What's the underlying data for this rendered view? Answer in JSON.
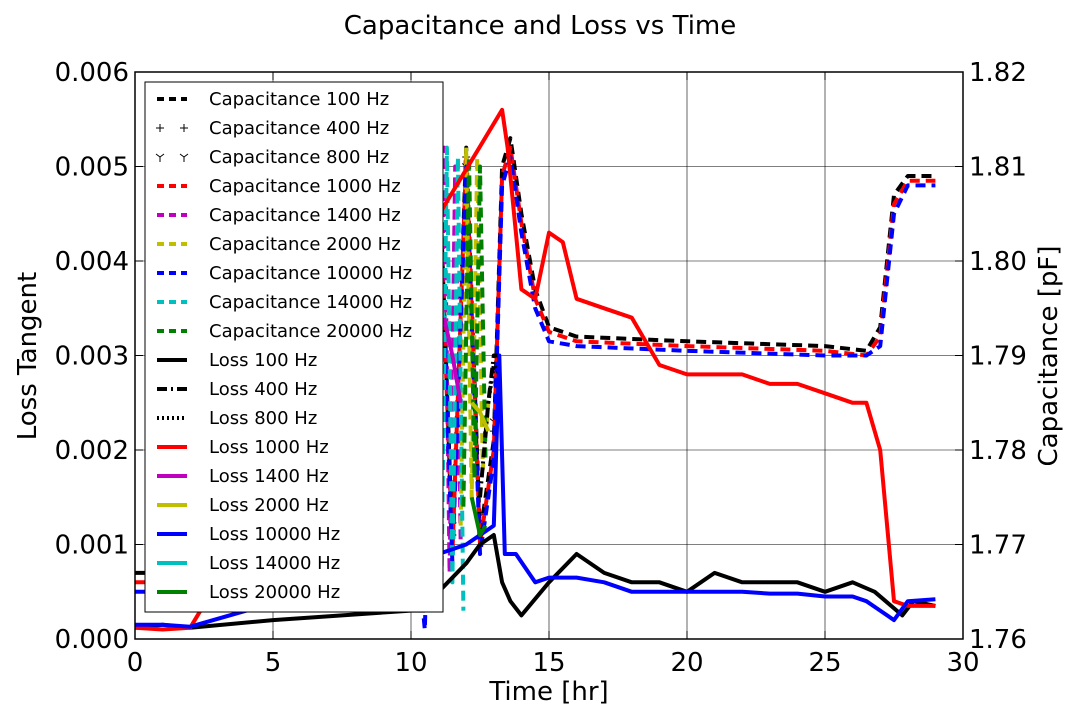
{
  "chart_data": {
    "type": "line",
    "title": "Capacitance and Loss vs Time",
    "xlabel": "Time [hr]",
    "ylabel_left": "Loss Tangent",
    "ylabel_right": "Capacitance [pF]",
    "xlim": [
      0,
      30
    ],
    "ylim_left": [
      0,
      0.006
    ],
    "ylim_right": [
      1.76,
      1.82
    ],
    "xticks": [
      "0",
      "5",
      "10",
      "15",
      "20",
      "25",
      "30"
    ],
    "yticks_left": [
      "0.000",
      "0.001",
      "0.002",
      "0.003",
      "0.004",
      "0.005",
      "0.006"
    ],
    "yticks_right": [
      "1.76",
      "1.77",
      "1.78",
      "1.79",
      "1.80",
      "1.81",
      "1.82"
    ],
    "grid": true,
    "legend_position": "top-left",
    "series": [
      {
        "name": "Capacitance 100 Hz",
        "axis": "right",
        "style": "dashed",
        "color": "#000000",
        "x": [
          0,
          0.5,
          1,
          10,
          10.5,
          11,
          11.5,
          12,
          12.5,
          13,
          13.3,
          13.6,
          14,
          14.5,
          15,
          16,
          20,
          25,
          26.5,
          27,
          27.5,
          28,
          29
        ],
        "y": [
          1.767,
          1.767,
          1.766,
          1.779,
          1.768,
          1.812,
          1.77,
          1.812,
          1.771,
          1.781,
          1.81,
          1.813,
          1.805,
          1.797,
          1.793,
          1.792,
          1.7915,
          1.791,
          1.7905,
          1.793,
          1.807,
          1.809,
          1.809
        ]
      },
      {
        "name": "Capacitance 400 Hz",
        "axis": "right",
        "style": "plus",
        "color": "#000000",
        "x": [
          10,
          10.5,
          11,
          11.5,
          12,
          12.5,
          13
        ],
        "y": [
          1.78,
          1.769,
          1.811,
          1.771,
          1.811,
          1.772,
          1.782
        ]
      },
      {
        "name": "Capacitance 800 Hz",
        "axis": "right",
        "style": "tri",
        "color": "#000000",
        "x": [
          10,
          10.5,
          11,
          11.5,
          12,
          12.5,
          13
        ],
        "y": [
          1.781,
          1.77,
          1.81,
          1.772,
          1.81,
          1.773,
          1.783
        ]
      },
      {
        "name": "Capacitance 1000 Hz",
        "axis": "right",
        "style": "dashed",
        "color": "#ff0000",
        "x": [
          0,
          0.5,
          1,
          10,
          10.5,
          11,
          11.5,
          12,
          12.5,
          13,
          13.3,
          13.6,
          14,
          14.5,
          15,
          16,
          20,
          25,
          26.5,
          27,
          27.5,
          28,
          29
        ],
        "y": [
          1.766,
          1.766,
          1.765,
          1.778,
          1.767,
          1.811,
          1.769,
          1.811,
          1.77,
          1.78,
          1.809,
          1.812,
          1.804,
          1.796,
          1.7925,
          1.7915,
          1.791,
          1.7905,
          1.79,
          1.792,
          1.806,
          1.8085,
          1.8085
        ]
      },
      {
        "name": "Capacitance 1400 Hz",
        "axis": "right",
        "style": "dashed",
        "color": "#bf00bf",
        "x": [
          10.5,
          10.8,
          11,
          11.2,
          11.4,
          11.6,
          11.8
        ],
        "y": [
          1.768,
          1.812,
          1.766,
          1.812,
          1.767,
          1.81,
          1.77
        ]
      },
      {
        "name": "Capacitance 2000 Hz",
        "axis": "right",
        "style": "dashed",
        "color": "#bfbf00",
        "x": [
          11.8,
          12,
          12.2,
          12.4,
          12.6,
          12.8
        ],
        "y": [
          1.772,
          1.812,
          1.775,
          1.811,
          1.778,
          1.785
        ]
      },
      {
        "name": "Capacitance 10000 Hz",
        "axis": "right",
        "style": "dashed",
        "color": "#0000ff",
        "x": [
          0,
          0.5,
          1,
          10,
          10.5,
          11,
          11.5,
          12,
          12.5,
          13,
          13.3,
          13.6,
          14,
          14.5,
          15,
          16,
          20,
          25,
          26.5,
          27,
          27.5,
          28,
          29
        ],
        "y": [
          1.765,
          1.765,
          1.764,
          1.777,
          1.761,
          1.81,
          1.768,
          1.81,
          1.769,
          1.779,
          1.808,
          1.811,
          1.803,
          1.795,
          1.7915,
          1.791,
          1.7905,
          1.79,
          1.79,
          1.791,
          1.805,
          1.808,
          1.808
        ]
      },
      {
        "name": "Capacitance 14000 Hz",
        "axis": "right",
        "style": "dashed",
        "color": "#00bfbf",
        "x": [
          10.7,
          10.9,
          11.1,
          11.3,
          11.5,
          11.7,
          11.9
        ],
        "y": [
          1.77,
          1.811,
          1.765,
          1.812,
          1.766,
          1.811,
          1.763
        ]
      },
      {
        "name": "Capacitance 20000 Hz",
        "axis": "right",
        "style": "dashed",
        "color": "#008000",
        "x": [
          11.9,
          12.1,
          12.3,
          12.5,
          12.7
        ],
        "y": [
          1.774,
          1.811,
          1.777,
          1.81,
          1.779
        ]
      },
      {
        "name": "Loss 100 Hz",
        "axis": "left",
        "style": "solid",
        "color": "#000000",
        "x": [
          0,
          1,
          2,
          5,
          10,
          10.5,
          11,
          12,
          12.5,
          13,
          13.3,
          13.6,
          14,
          15,
          16,
          17,
          18,
          19,
          20,
          21,
          22,
          23,
          24,
          25,
          26,
          26.8,
          27.2,
          27.8,
          28.2,
          29
        ],
        "y": [
          0.00012,
          0.00015,
          0.00012,
          0.0002,
          0.0003,
          0.0003,
          0.0005,
          0.0008,
          0.001,
          0.0011,
          0.0006,
          0.0004,
          0.00025,
          0.0006,
          0.0009,
          0.0007,
          0.0006,
          0.0006,
          0.0005,
          0.0007,
          0.0006,
          0.0006,
          0.0006,
          0.0005,
          0.0006,
          0.0005,
          0.0004,
          0.00025,
          0.0004,
          0.00035
        ]
      },
      {
        "name": "Loss 400 Hz",
        "axis": "left",
        "style": "dashdot",
        "color": "#000000",
        "x": [
          12.5,
          12.8,
          13,
          13.2
        ],
        "y": [
          0.0015,
          0.0025,
          0.003,
          0.003
        ]
      },
      {
        "name": "Loss 800 Hz",
        "axis": "left",
        "style": "dotted",
        "color": "#000000",
        "x": [
          12.8,
          13,
          13.2
        ],
        "y": [
          0.0025,
          0.0029,
          0.0028
        ]
      },
      {
        "name": "Loss 1000 Hz",
        "axis": "left",
        "style": "solid",
        "color": "#ff0000",
        "x": [
          0,
          1,
          2,
          13.3,
          13.5,
          14,
          14.5,
          15,
          15.5,
          16,
          17,
          18,
          19,
          20,
          21,
          22,
          23,
          24,
          25,
          26,
          26.5,
          27,
          27.5,
          28,
          29
        ],
        "y": [
          0.00012,
          0.0001,
          0.00012,
          0.0056,
          0.0052,
          0.0037,
          0.0036,
          0.0043,
          0.0042,
          0.0036,
          0.0035,
          0.0034,
          0.0029,
          0.0028,
          0.0028,
          0.0028,
          0.0027,
          0.0027,
          0.0026,
          0.0025,
          0.0025,
          0.002,
          0.0004,
          0.00035,
          0.00035
        ]
      },
      {
        "name": "Loss 1400 Hz",
        "axis": "left",
        "style": "solid",
        "color": "#bf00bf",
        "x": [
          11.2,
          11.5,
          11.8
        ],
        "y": [
          0.0034,
          0.003,
          0.0025
        ]
      },
      {
        "name": "Loss 2000 Hz",
        "axis": "left",
        "style": "solid",
        "color": "#bfbf00",
        "x": [
          12.2,
          12.5,
          12.8
        ],
        "y": [
          0.0025,
          0.0024,
          0.0022
        ]
      },
      {
        "name": "Loss 10000 Hz",
        "axis": "left",
        "style": "solid",
        "color": "#0000ff",
        "x": [
          0,
          1,
          2,
          10,
          11,
          12,
          13,
          13.2,
          13.4,
          13.8,
          14.5,
          15,
          16,
          17,
          18,
          19,
          20,
          21,
          22,
          23,
          24,
          25,
          26,
          26.5,
          27,
          27.5,
          28,
          29
        ],
        "y": [
          0.00015,
          0.00015,
          0.00013,
          0.0008,
          0.0009,
          0.001,
          0.0012,
          0.003,
          0.0009,
          0.0009,
          0.0006,
          0.00065,
          0.00065,
          0.0006,
          0.0005,
          0.0005,
          0.0005,
          0.0005,
          0.0005,
          0.00048,
          0.00048,
          0.00045,
          0.00045,
          0.0004,
          0.0003,
          0.0002,
          0.0004,
          0.00042
        ]
      },
      {
        "name": "Loss 14000 Hz",
        "axis": "left",
        "style": "solid",
        "color": "#00bfbf",
        "x": [
          10.8,
          11,
          11.2
        ],
        "y": [
          0.0038,
          0.0036,
          0.0034
        ]
      },
      {
        "name": "Loss 20000 Hz",
        "axis": "left",
        "style": "solid",
        "color": "#008000",
        "x": [
          12.2,
          12.5,
          12.7
        ],
        "y": [
          0.0015,
          0.0011,
          0.0012
        ]
      }
    ]
  }
}
